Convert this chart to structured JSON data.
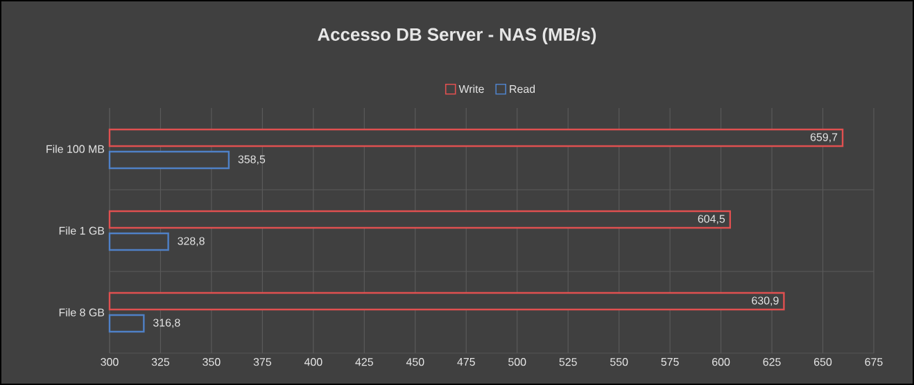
{
  "chart_data": {
    "type": "bar",
    "orientation": "horizontal",
    "title": "Accesso DB Server - NAS (MB/s)",
    "categories": [
      "File 100 MB",
      "File 1 GB",
      "File 8 GB"
    ],
    "series": [
      {
        "name": "Write",
        "color": "#e05050",
        "values": [
          659.7,
          604.5,
          630.9
        ],
        "value_labels": [
          "659,7",
          "604,5",
          "630,9"
        ]
      },
      {
        "name": "Read",
        "color": "#4f81c7",
        "values": [
          358.5,
          328.8,
          316.8
        ],
        "value_labels": [
          "358,5",
          "328,8",
          "316,8"
        ]
      }
    ],
    "xlim": [
      300,
      675
    ],
    "xticks": [
      300,
      325,
      350,
      375,
      400,
      425,
      450,
      475,
      500,
      525,
      550,
      575,
      600,
      625,
      650,
      675
    ],
    "grid": true,
    "legend": "top"
  }
}
